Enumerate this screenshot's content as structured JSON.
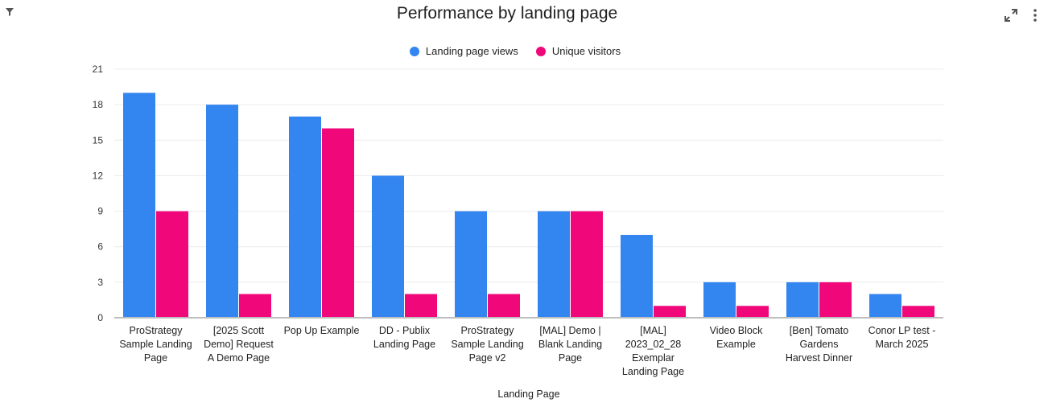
{
  "header": {
    "title": "Performance by landing page",
    "filter_icon": "filter-icon",
    "expand_icon": "expand-icon",
    "more_icon": "more-vertical-icon"
  },
  "colors": {
    "views": "#3385f0",
    "visitors": "#f0087a",
    "grid": "#ececec",
    "axis": "#bdbdbd"
  },
  "chart_data": {
    "type": "bar",
    "title": "Performance by landing page",
    "xlabel": "Landing Page",
    "ylabel": "",
    "ylim": [
      0,
      21
    ],
    "yticks": [
      0,
      3,
      6,
      9,
      12,
      15,
      18,
      21
    ],
    "grid": true,
    "legend_position": "top-center",
    "categories": [
      [
        "ProStrategy",
        "Sample Landing",
        "Page"
      ],
      [
        "[2025 Scott",
        "Demo] Request",
        "A Demo Page"
      ],
      [
        "Pop Up Example"
      ],
      [
        "DD - Publix",
        "Landing Page"
      ],
      [
        "ProStrategy",
        "Sample Landing",
        "Page v2"
      ],
      [
        "[MAL] Demo |",
        "Blank Landing",
        "Page"
      ],
      [
        "[MAL]",
        "2023_02_28",
        "Exemplar",
        "Landing Page"
      ],
      [
        "Video Block",
        "Example"
      ],
      [
        "[Ben] Tomato",
        "Gardens",
        "Harvest Dinner"
      ],
      [
        "Conor LP test -",
        "March 2025"
      ]
    ],
    "series": [
      {
        "name": "Landing page views",
        "values": [
          19,
          18,
          17,
          12,
          9,
          9,
          7,
          3,
          3,
          2
        ]
      },
      {
        "name": "Unique visitors",
        "values": [
          9,
          2,
          16,
          2,
          2,
          9,
          1,
          1,
          3,
          1
        ]
      }
    ]
  }
}
